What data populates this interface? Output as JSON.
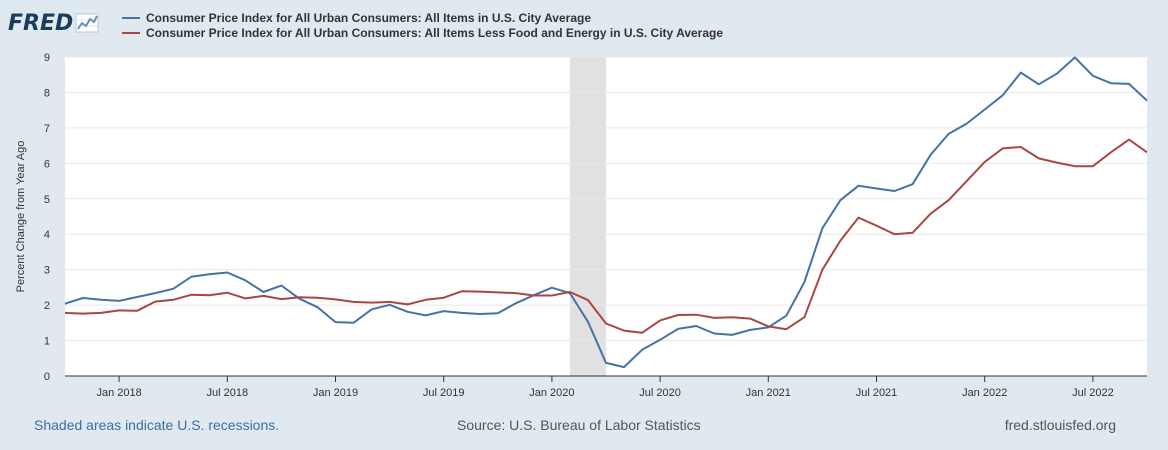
{
  "branding": {
    "logo_text": "FRED",
    "logo_icon": "line-chart-icon"
  },
  "footer": {
    "recession_note": "Shaded areas indicate U.S. recessions.",
    "source": "Source: U.S. Bureau of Labor Statistics",
    "site": "fred.stlouisfed.org"
  },
  "colors": {
    "series1": "#4572a7",
    "series2": "#aa4643",
    "recession": "#e1e1e1",
    "grid": "#e8e8e8"
  },
  "chart_data": {
    "type": "line",
    "title": "",
    "xlabel": "",
    "ylabel": "Percent Change from Year Ago",
    "ylim": [
      0,
      9
    ],
    "yticks": [
      "0",
      "1",
      "2",
      "3",
      "4",
      "5",
      "6",
      "7",
      "8",
      "9"
    ],
    "xrange": [
      "2017-10",
      "2022-10"
    ],
    "xticks": [
      {
        "label": "Jan 2018",
        "date": "2018-01"
      },
      {
        "label": "Jul 2018",
        "date": "2018-07"
      },
      {
        "label": "Jan 2019",
        "date": "2019-01"
      },
      {
        "label": "Jul 2019",
        "date": "2019-07"
      },
      {
        "label": "Jan 2020",
        "date": "2020-01"
      },
      {
        "label": "Jul 2020",
        "date": "2020-07"
      },
      {
        "label": "Jan 2021",
        "date": "2021-01"
      },
      {
        "label": "Jul 2021",
        "date": "2021-07"
      },
      {
        "label": "Jan 2022",
        "date": "2022-01"
      },
      {
        "label": "Jul 2022",
        "date": "2022-07"
      }
    ],
    "recessions": [
      {
        "start": "2020-02",
        "end": "2020-04"
      }
    ],
    "legend_position": "top-left",
    "x": [
      "2017-10",
      "2017-11",
      "2017-12",
      "2018-01",
      "2018-02",
      "2018-03",
      "2018-04",
      "2018-05",
      "2018-06",
      "2018-07",
      "2018-08",
      "2018-09",
      "2018-10",
      "2018-11",
      "2018-12",
      "2019-01",
      "2019-02",
      "2019-03",
      "2019-04",
      "2019-05",
      "2019-06",
      "2019-07",
      "2019-08",
      "2019-09",
      "2019-10",
      "2019-11",
      "2019-12",
      "2020-01",
      "2020-02",
      "2020-03",
      "2020-04",
      "2020-05",
      "2020-06",
      "2020-07",
      "2020-08",
      "2020-09",
      "2020-10",
      "2020-11",
      "2020-12",
      "2021-01",
      "2021-02",
      "2021-03",
      "2021-04",
      "2021-05",
      "2021-06",
      "2021-07",
      "2021-08",
      "2021-09",
      "2021-10",
      "2021-11",
      "2021-12",
      "2022-01",
      "2022-02",
      "2022-03",
      "2022-04",
      "2022-05",
      "2022-06",
      "2022-07",
      "2022-08",
      "2022-09",
      "2022-10"
    ],
    "series": [
      {
        "name": "Consumer Price Index for All Urban Consumers: All Items in U.S. City Average",
        "color": "#4572a7",
        "values": [
          2.04,
          2.2,
          2.15,
          2.12,
          2.23,
          2.34,
          2.46,
          2.8,
          2.87,
          2.92,
          2.7,
          2.37,
          2.55,
          2.18,
          1.94,
          1.52,
          1.5,
          1.88,
          2.01,
          1.81,
          1.71,
          1.83,
          1.78,
          1.75,
          1.77,
          2.05,
          2.28,
          2.49,
          2.34,
          1.53,
          0.37,
          0.25,
          0.74,
          1.02,
          1.33,
          1.41,
          1.2,
          1.16,
          1.3,
          1.37,
          1.7,
          2.65,
          4.17,
          4.96,
          5.37,
          5.29,
          5.22,
          5.41,
          6.24,
          6.83,
          7.12,
          7.52,
          7.92,
          8.56,
          8.23,
          8.53,
          8.99,
          8.47,
          8.26,
          8.24,
          7.77
        ]
      },
      {
        "name": "Consumer Price Index for All Urban Consumers: All Items Less Food and Energy in U.S. City Average",
        "color": "#aa4643",
        "values": [
          1.78,
          1.76,
          1.78,
          1.85,
          1.84,
          2.1,
          2.15,
          2.29,
          2.28,
          2.35,
          2.19,
          2.26,
          2.17,
          2.22,
          2.21,
          2.16,
          2.09,
          2.07,
          2.09,
          2.02,
          2.15,
          2.21,
          2.39,
          2.38,
          2.36,
          2.34,
          2.27,
          2.27,
          2.37,
          2.14,
          1.48,
          1.28,
          1.22,
          1.57,
          1.72,
          1.73,
          1.64,
          1.66,
          1.62,
          1.4,
          1.32,
          1.66,
          3.0,
          3.82,
          4.47,
          4.24,
          4.0,
          4.04,
          4.58,
          4.96,
          5.5,
          6.04,
          6.42,
          6.46,
          6.14,
          6.02,
          5.92,
          5.92,
          6.31,
          6.67,
          6.31
        ]
      }
    ]
  }
}
